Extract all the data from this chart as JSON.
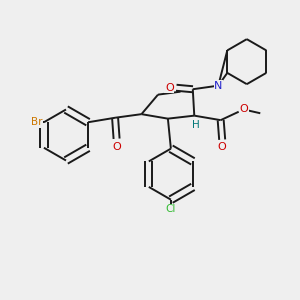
{
  "background_color": "#efefef",
  "bond_color": "#1a1a1a",
  "atom_colors": {
    "Br": "#cc7700",
    "O": "#cc0000",
    "N": "#2222cc",
    "Cl": "#33bb33",
    "H": "#007777",
    "C": "#1a1a1a"
  },
  "bond_lw": 1.4,
  "font_size": 8.0
}
